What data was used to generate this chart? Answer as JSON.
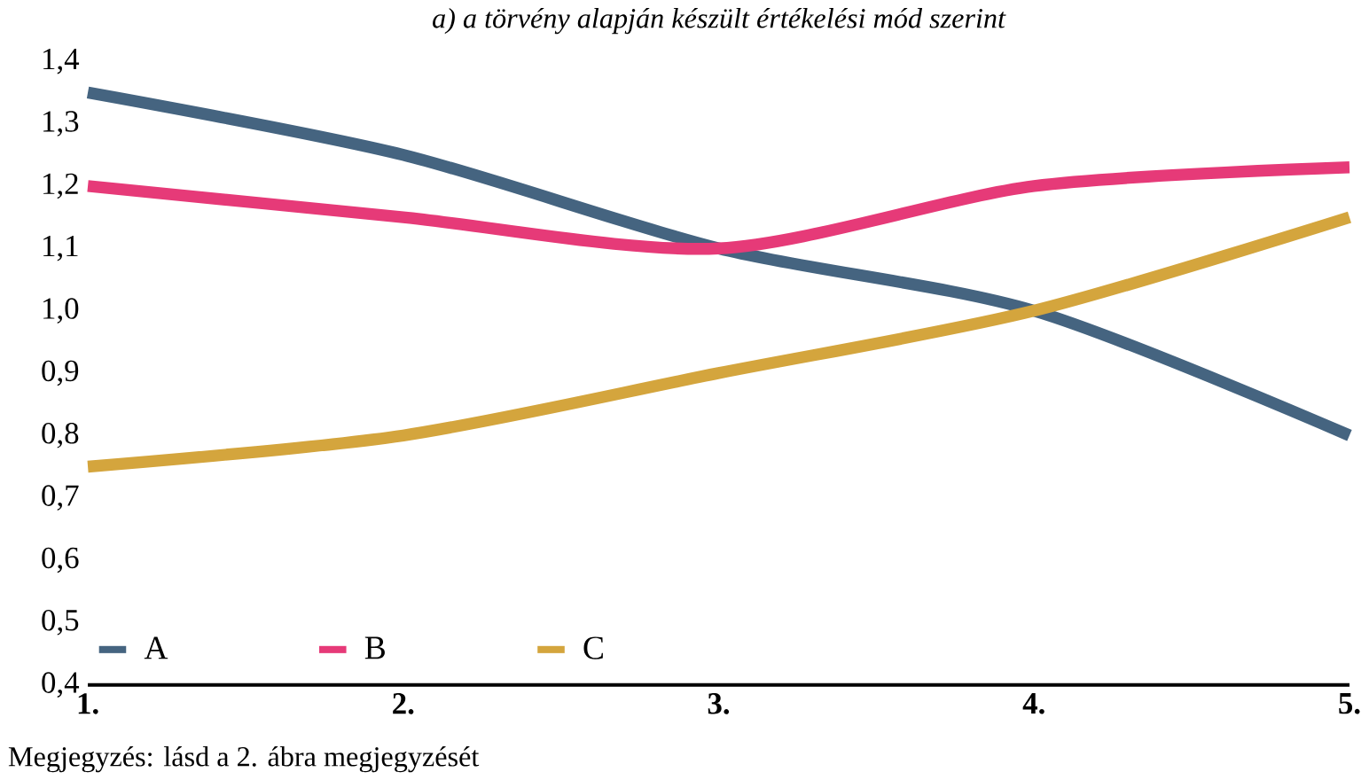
{
  "chart_data": {
    "type": "line",
    "title": "a) a törvény alapján készült értékelési mód szerint",
    "categories": [
      "1.",
      "2.",
      "3.",
      "4.",
      "5."
    ],
    "series": [
      {
        "name": "A",
        "color": "#456480",
        "values": [
          1.35,
          1.25,
          1.1,
          1.0,
          0.8
        ]
      },
      {
        "name": "B",
        "color": "#e63a78",
        "values": [
          1.2,
          1.15,
          1.1,
          1.2,
          1.23
        ]
      },
      {
        "name": "C",
        "color": "#d4a53d",
        "values": [
          0.75,
          0.8,
          0.9,
          1.0,
          1.15
        ]
      }
    ],
    "ylim": [
      0.4,
      1.4
    ],
    "yticks": [
      {
        "value": 0.4,
        "label": "0,4"
      },
      {
        "value": 0.5,
        "label": "0,5"
      },
      {
        "value": 0.6,
        "label": "0,6"
      },
      {
        "value": 0.7,
        "label": "0,7"
      },
      {
        "value": 0.8,
        "label": "0,8"
      },
      {
        "value": 0.9,
        "label": "0,9"
      },
      {
        "value": 1.0,
        "label": "1,0"
      },
      {
        "value": 1.1,
        "label": "1,1"
      },
      {
        "value": 1.2,
        "label": "1,2"
      },
      {
        "value": 1.3,
        "label": "1,3"
      },
      {
        "value": 1.4,
        "label": "1,4"
      }
    ],
    "legend": "bottom left",
    "grid": false,
    "marker": "none",
    "line_style": "solid",
    "annotations": [
      "Megjegyzés: lásd a 2. ábra megjegyzését"
    ]
  }
}
